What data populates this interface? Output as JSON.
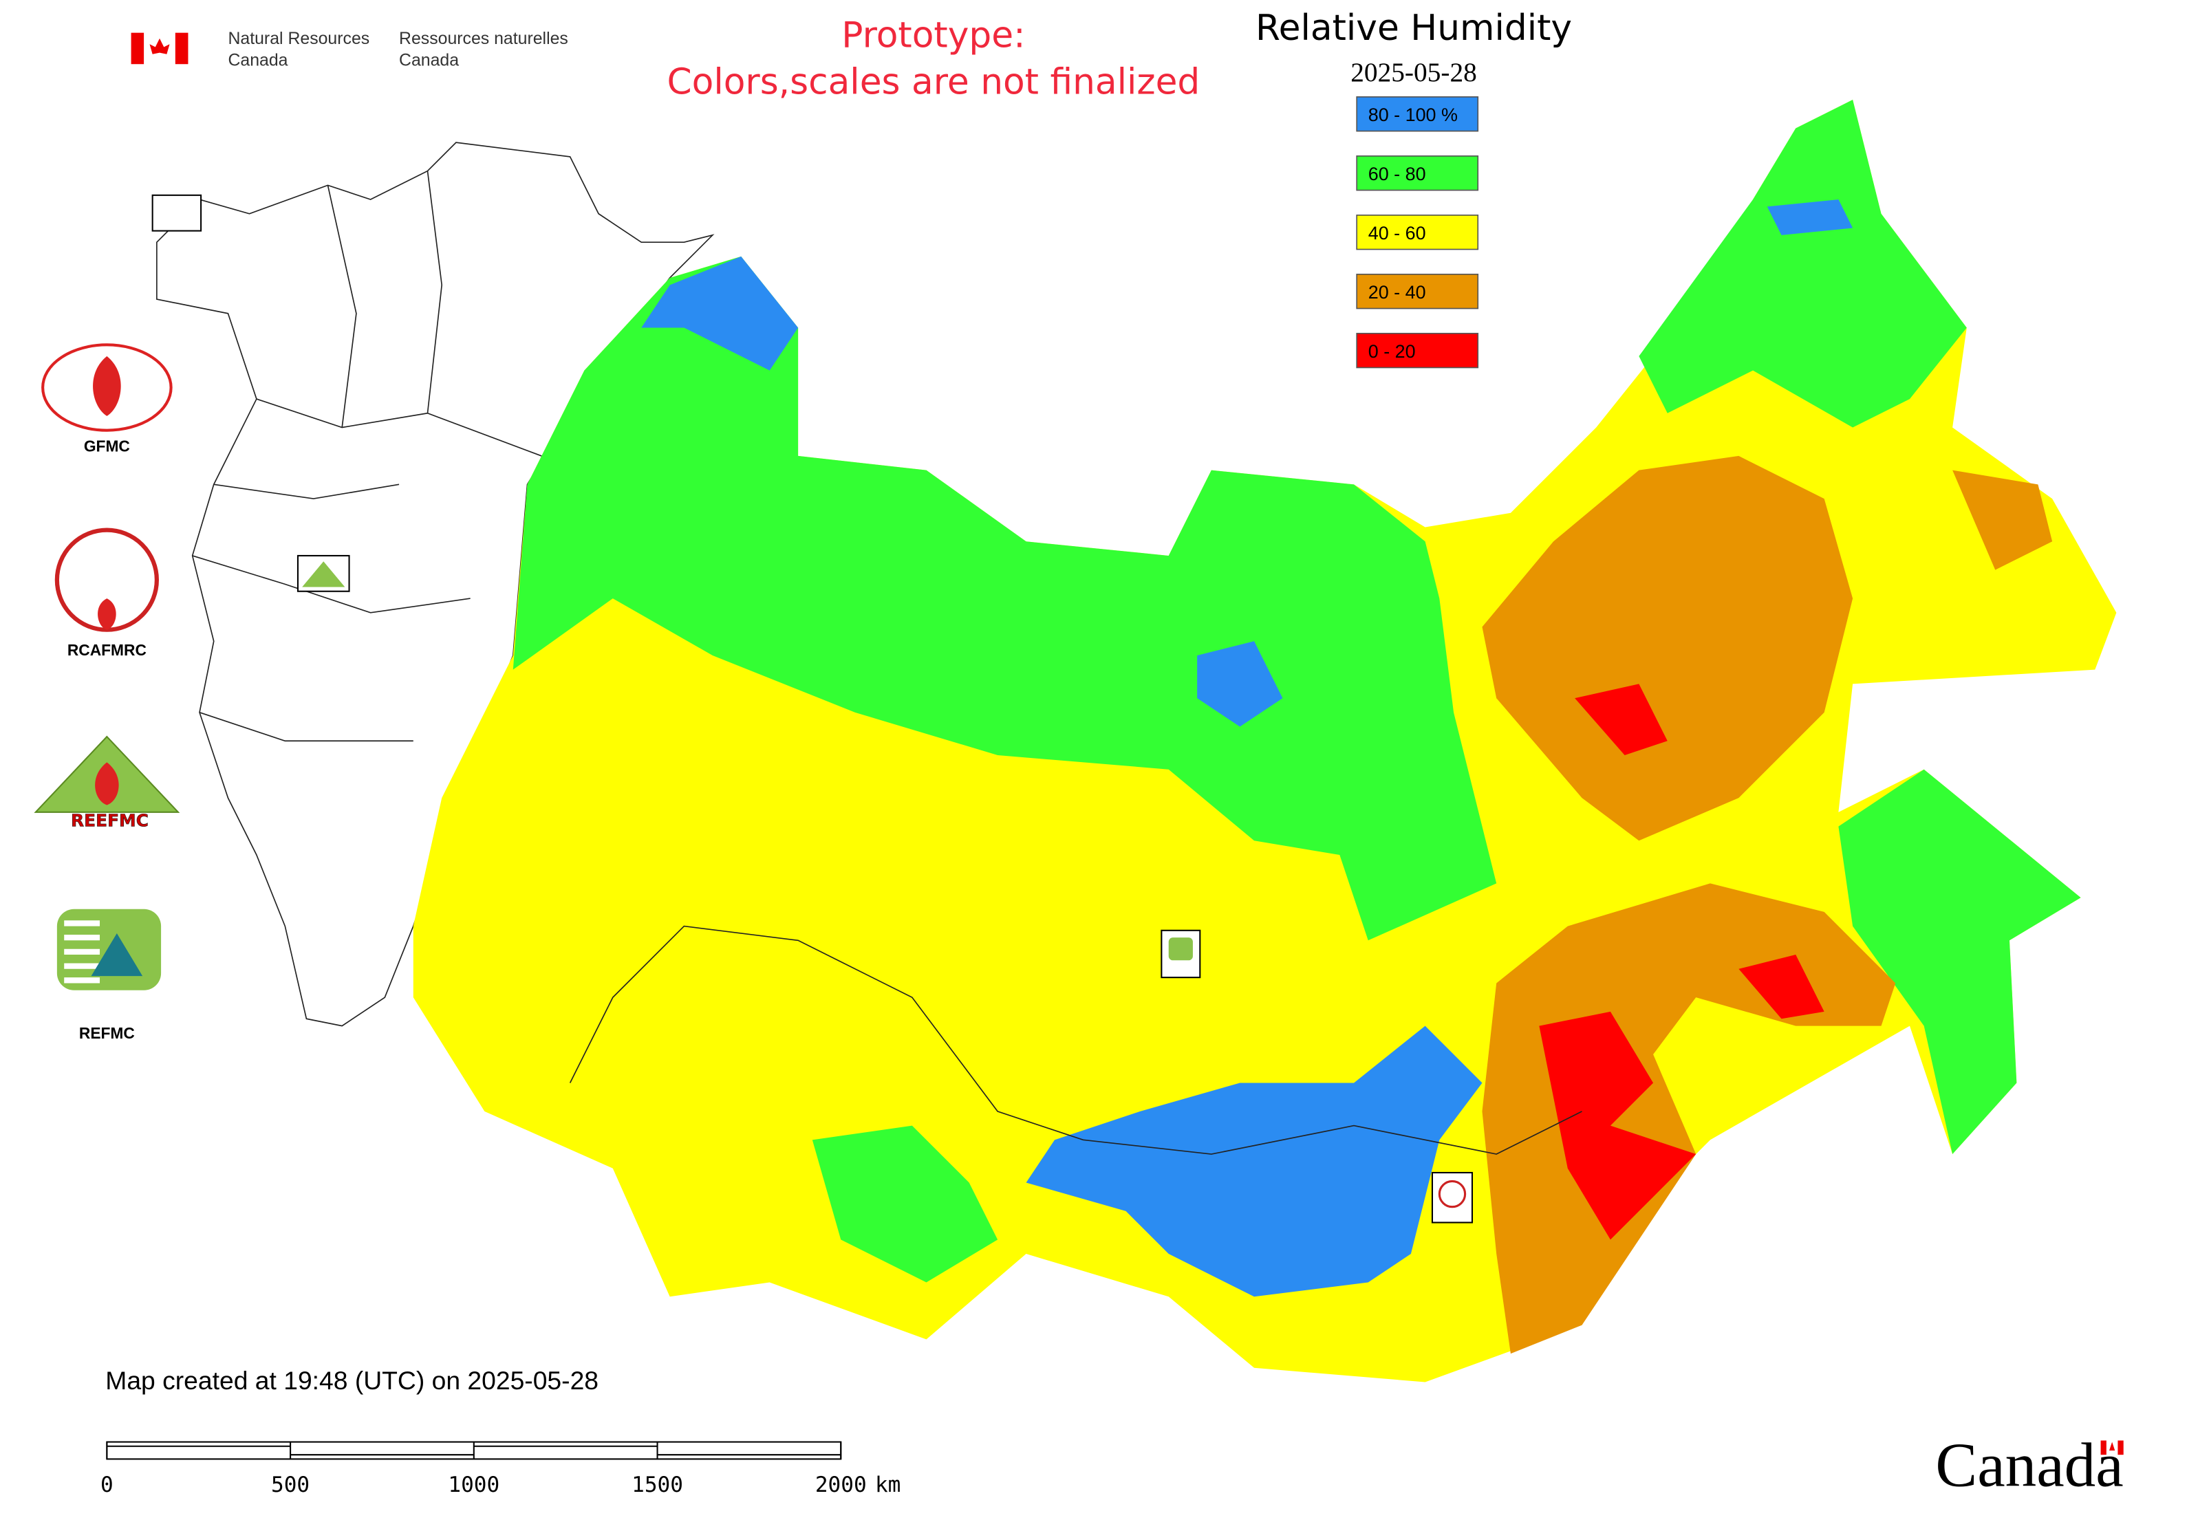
{
  "header": {
    "department_en": [
      "Natural Resources",
      "Canada"
    ],
    "department_fr": [
      "Ressources naturelles",
      "Canada"
    ]
  },
  "notice": [
    "Prototype:",
    "Colors,scales are not finalized"
  ],
  "legend": {
    "title": "Relative Humidity",
    "date": "2025-05-28",
    "items": [
      {
        "label": "80 - 100 %",
        "color": "#2b8cf2"
      },
      {
        "label": "60 - 80",
        "color": "#33ff33"
      },
      {
        "label": "40 - 60",
        "color": "#ffff00"
      },
      {
        "label": "20 - 40",
        "color": "#e89400"
      },
      {
        "label": "0 - 20",
        "color": "#ff0000"
      }
    ]
  },
  "logos": [
    "GFMC",
    "RCAFMRC",
    "REEFMC",
    "REFMC"
  ],
  "footer": {
    "created": "Map created at 19:48 (UTC) on 2025-05-28",
    "scale_bar": {
      "ticks": [
        0,
        500,
        1000,
        1500,
        2000
      ],
      "unit": "km"
    },
    "wordmark": "Canada"
  }
}
